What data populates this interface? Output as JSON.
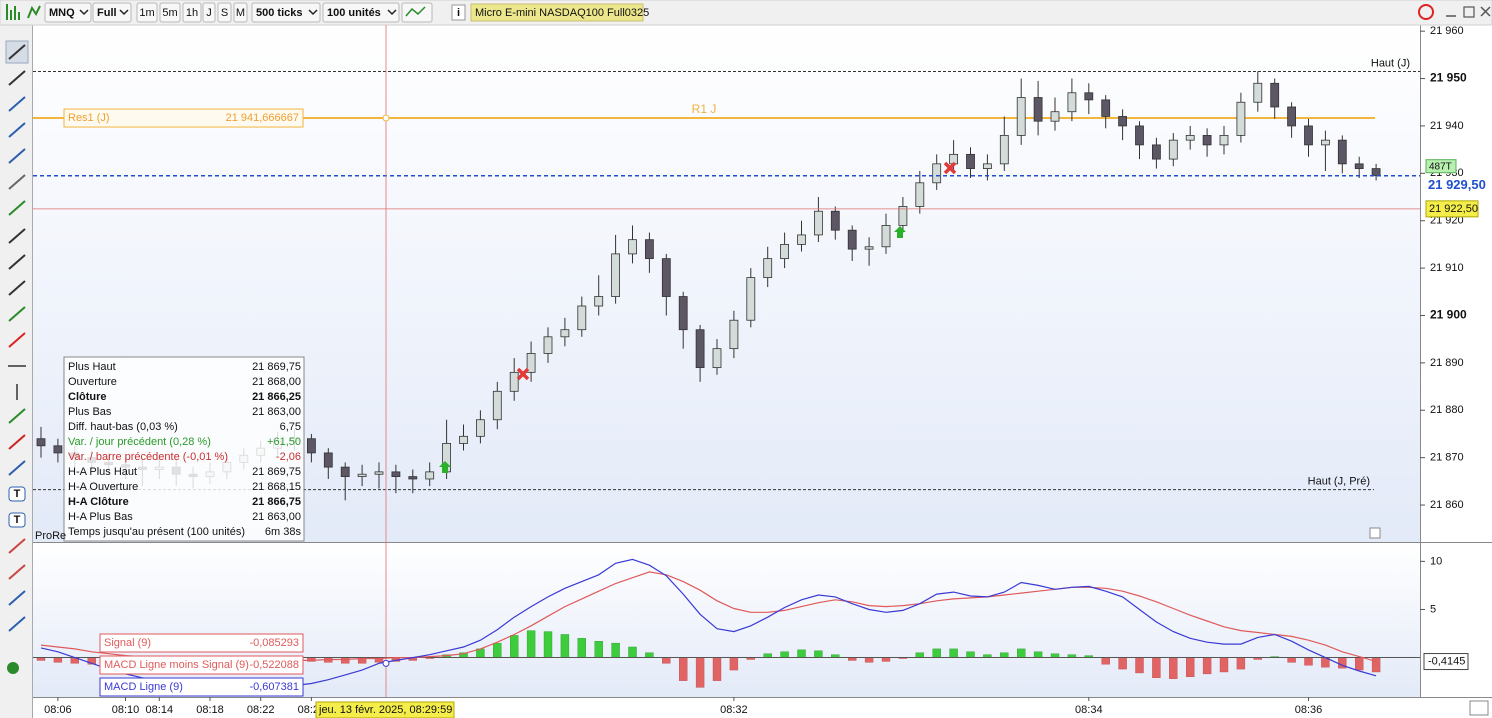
{
  "toolbar": {
    "symbol": "MNQ",
    "view": "Full",
    "periods": [
      "1m",
      "5m",
      "1h",
      "J",
      "S",
      "M"
    ],
    "ticks": "500 ticks",
    "units": "100 unités",
    "instrument": "Micro E-mini NASDAQ100 Full0325"
  },
  "chart_data": [
    {
      "type": "candlestick",
      "categories": [
        null,
        "08:06",
        null,
        null,
        null,
        "08:10",
        null,
        "08:14",
        null,
        null,
        "08:18",
        null,
        null,
        "08:22",
        null,
        null,
        "08:26",
        null,
        null,
        null,
        null,
        null,
        null,
        null,
        null,
        null,
        null,
        null,
        null,
        null,
        null,
        null,
        null,
        null,
        null,
        null,
        null,
        null,
        null,
        null,
        null,
        "08:32",
        null,
        null,
        null,
        null,
        null,
        null,
        null,
        null,
        null,
        null,
        null,
        null,
        null,
        null,
        null,
        null,
        null,
        null,
        null,
        null,
        "08:34",
        null,
        null,
        null,
        null,
        null,
        null,
        null,
        null,
        null,
        null,
        null,
        null,
        "08:36",
        null,
        null,
        null,
        null
      ],
      "open": [
        21874,
        21872.5,
        21871,
        21870,
        21869,
        21868.5,
        21868,
        21867.5,
        21868,
        21866.5,
        21866,
        21867,
        21869,
        21870.5,
        21872,
        21873.5,
        21874,
        21871,
        21868,
        21866,
        21866.5,
        21867,
        21866,
        21865.5,
        21867,
        21873,
        21874.5,
        21878,
        21884,
        21888,
        21892,
        21895.5,
        21897,
        21902,
        21904,
        21913,
        21916,
        21912,
        21904,
        21897,
        21889,
        21893,
        21899,
        21908,
        21912,
        21915,
        21917,
        21922,
        21918,
        21914,
        21914.5,
        21919,
        21923,
        21928,
        21932,
        21934,
        21931,
        21932,
        21938,
        21946,
        21941,
        21943,
        21947,
        21945.5,
        21942,
        21940,
        21936,
        21933,
        21937,
        21938,
        21936,
        21938,
        21945,
        21949,
        21944,
        21940,
        21936,
        21937,
        21932,
        21931
      ],
      "high": [
        21876.5,
        21874,
        21872.5,
        21871.5,
        21871,
        21870,
        21869.5,
        21870,
        21869.5,
        21868,
        21869,
        21870.5,
        21872,
        21873.5,
        21875.5,
        21876,
        21875,
        21872,
        21869,
        21868.5,
        21869,
        21868.5,
        21867.5,
        21869,
        21878,
        21877,
        21880,
        21886,
        21891,
        21894.5,
        21897.5,
        21899.5,
        21904,
        21908.5,
        21917,
        21919,
        21917.5,
        21913,
        21905,
        21898,
        21895,
        21901,
        21910,
        21914.5,
        21917.5,
        21920,
        21925,
        21923,
        21919,
        21916.5,
        21921.5,
        21925,
        21930.5,
        21934,
        21937,
        21935.5,
        21934,
        21942,
        21950,
        21949.5,
        21946,
        21950,
        21949,
        21946.5,
        21943.5,
        21941,
        21937.5,
        21938.5,
        21940,
        21939.5,
        21940,
        21947,
        21951.5,
        21950,
        21945,
        21941.5,
        21939,
        21938,
        21933.5,
        21932
      ],
      "low": [
        21870,
        21869,
        21868,
        21867.5,
        21866.5,
        21865.5,
        21864,
        21865.5,
        21864,
        21863.5,
        21864.5,
        21865.5,
        21867.5,
        21869,
        21870.5,
        21871.5,
        21869,
        21865.5,
        21861,
        21864,
        21863.5,
        21862.5,
        21862.5,
        21864,
        21865.5,
        21871.5,
        21873,
        21876,
        21882,
        21886,
        21890,
        21893.5,
        21895.5,
        21900,
        21902.5,
        21911,
        21909,
        21900,
        21893,
        21886,
        21887.5,
        21891,
        21897.5,
        21906,
        21910,
        21913.5,
        21915.5,
        21916,
        21911.5,
        21910.5,
        21913,
        21917.5,
        21921.5,
        21926.5,
        21930.5,
        21929,
        21928.5,
        21930.5,
        21936,
        21938,
        21939,
        21941,
        21942.5,
        21939.5,
        21937,
        21933,
        21931,
        21931.5,
        21935,
        21933.5,
        21934,
        21936.5,
        21943,
        21941.5,
        21937.5,
        21933.5,
        21930.5,
        21930,
        21929,
        21928.5
      ],
      "close": [
        21872.5,
        21871,
        21870,
        21869,
        21868.5,
        21868,
        21867.5,
        21868,
        21866.5,
        21866,
        21867,
        21869,
        21870.5,
        21872,
        21873.5,
        21874,
        21871,
        21868,
        21866,
        21866.5,
        21867,
        21866,
        21865.5,
        21867,
        21873,
        21874.5,
        21878,
        21884,
        21888,
        21892,
        21895.5,
        21897,
        21902,
        21904,
        21913,
        21916,
        21912,
        21904,
        21897,
        21889,
        21893,
        21899,
        21908,
        21912,
        21915,
        21917,
        21922,
        21918,
        21914,
        21914.5,
        21919,
        21923,
        21928,
        21932,
        21934,
        21931,
        21932,
        21938,
        21946,
        21941,
        21943,
        21947,
        21945.5,
        21942,
        21940,
        21936,
        21933,
        21937,
        21938,
        21936,
        21938,
        21945,
        21949,
        21944,
        21940,
        21936,
        21937,
        21932,
        21931,
        21929.5
      ],
      "up_color": "#d3dcd9",
      "down_color": "#5c5665",
      "ylim": [
        21852.2,
        21961.3
      ],
      "yticks": [
        {
          "value": 21960,
          "label": "21 960"
        },
        {
          "value": 21950,
          "label": "21 950"
        },
        {
          "value": 21940,
          "label": "21 940"
        },
        {
          "value": 21930,
          "label": "21 930"
        },
        {
          "value": 21920,
          "label": "21 920"
        },
        {
          "value": 21910,
          "label": "21 910"
        },
        {
          "value": 21900,
          "label": "21 900"
        },
        {
          "value": 21890,
          "label": "21 890"
        },
        {
          "value": 21880,
          "label": "21 880"
        },
        {
          "value": 21870,
          "label": "21 870"
        },
        {
          "value": 21860,
          "label": "21 860"
        }
      ],
      "levels": [
        {
          "label": "Haut (J)",
          "value": 21951.5
        },
        {
          "label": "Haut (J, Pré)",
          "value": 21863.25
        }
      ],
      "pivot": {
        "name": "R1 J",
        "label": "Res1 (J)",
        "value": 21941.666667,
        "value_label": "21 941,666667"
      },
      "last_price": {
        "value": 21929.5,
        "label": "21 929,50",
        "volume_tag": "487T"
      },
      "crosshair": {
        "value": 21922.5,
        "label": "21 922,50",
        "time": "jeu. 13 févr. 2025, 08:29:59"
      },
      "watermark": "ProRe"
    },
    {
      "type": "macd",
      "series": [
        {
          "name": "Signal (9)",
          "color": "#e05a5a",
          "current": {
            "value": -0.085293,
            "label": "-0,085293"
          },
          "values": [
            1.3,
            1.1,
            0.9,
            0.6,
            0.4,
            0.2,
            0.1,
            0.0,
            -0.1,
            -0.2,
            -0.2,
            -0.3,
            -0.3,
            -0.3,
            -0.3,
            -0.3,
            -0.3,
            -0.2,
            -0.2,
            -0.1,
            -0.1,
            0.0,
            0.0,
            0.1,
            0.2,
            0.4,
            0.9,
            1.6,
            2.4,
            3.3,
            4.3,
            5.3,
            6.1,
            6.9,
            7.7,
            8.3,
            8.9,
            8.6,
            7.9,
            7.0,
            5.9,
            5.1,
            4.7,
            4.7,
            4.9,
            5.3,
            5.7,
            6.0,
            5.8,
            5.4,
            5.3,
            5.4,
            5.6,
            5.9,
            6.1,
            6.2,
            6.3,
            6.5,
            6.7,
            6.9,
            7.1,
            7.3,
            7.3,
            7.2,
            6.9,
            6.4,
            5.8,
            5.1,
            4.4,
            3.8,
            3.2,
            2.8,
            2.6,
            2.4,
            2.2,
            1.8,
            1.3,
            0.6,
            0.1,
            -0.4
          ]
        },
        {
          "name": "MACD Ligne moins Signal (9)",
          "up_color": "#3ccc3c",
          "down_color": "#e06464",
          "current": {
            "value": -0.522088,
            "label": "-0,522088"
          },
          "values": [
            -0.3,
            -0.5,
            -0.6,
            -0.7,
            -0.6,
            -0.6,
            -0.5,
            -0.6,
            -0.5,
            -0.6,
            -0.6,
            -0.5,
            -0.5,
            -0.4,
            -0.4,
            -0.3,
            -0.4,
            -0.5,
            -0.6,
            -0.6,
            -0.5,
            -0.4,
            -0.3,
            -0.1,
            0.3,
            0.5,
            0.9,
            1.5,
            2.3,
            2.8,
            2.7,
            2.4,
            2.0,
            1.7,
            1.5,
            1.1,
            0.5,
            -0.6,
            -2.4,
            -3.1,
            -2.4,
            -1.3,
            -0.2,
            0.4,
            0.6,
            0.8,
            0.7,
            0.3,
            -0.3,
            -0.5,
            -0.4,
            -0.1,
            0.5,
            0.9,
            0.9,
            0.6,
            0.3,
            0.5,
            0.9,
            0.6,
            0.4,
            0.3,
            0.2,
            -0.7,
            -1.2,
            -1.6,
            -2.1,
            -2.2,
            -2.0,
            -1.7,
            -1.5,
            -1.2,
            -0.2,
            0.1,
            -0.5,
            -0.8,
            -1.0,
            -1.1,
            -1.3,
            -1.5
          ]
        },
        {
          "name": "MACD Ligne (9)",
          "color": "#3a3ad4",
          "current": {
            "value": -0.607381,
            "label": "-0,607381"
          },
          "values": [
            1.0,
            0.6,
            0.0,
            -0.6,
            -1.2,
            -1.7,
            -2.1,
            -2.4,
            -2.6,
            -2.8,
            -2.9,
            -3.0,
            -3.0,
            -3.0,
            -2.9,
            -2.9,
            -2.7,
            -2.3,
            -1.8,
            -1.3,
            -0.6,
            -0.3,
            0.0,
            0.3,
            0.7,
            1.1,
            1.8,
            2.9,
            4.2,
            5.3,
            6.3,
            7.2,
            7.9,
            8.6,
            9.8,
            10.2,
            9.6,
            8.5,
            6.6,
            4.5,
            3.0,
            2.7,
            3.3,
            4.2,
            5.2,
            6.0,
            6.5,
            6.3,
            5.6,
            5.0,
            4.7,
            4.9,
            5.6,
            6.6,
            6.8,
            6.4,
            6.3,
            6.8,
            7.8,
            7.5,
            7.1,
            7.3,
            7.4,
            6.9,
            6.3,
            5.0,
            3.7,
            2.7,
            2.0,
            1.6,
            1.4,
            1.4,
            2.1,
            2.4,
            1.7,
            0.8,
            0.0,
            -0.8,
            -1.4,
            -1.9
          ]
        }
      ],
      "last_value": {
        "value": -0.4145,
        "label": "-0,4145"
      },
      "ylim": [
        -4.1,
        11.7
      ],
      "yticks": [
        5,
        10
      ]
    }
  ],
  "info_box": {
    "rows": [
      [
        "Plus Haut",
        "21 869,75"
      ],
      [
        "Ouverture",
        "21 868,00"
      ],
      [
        "Clôture",
        "21 866,25"
      ],
      [
        "Plus Bas",
        "21 863,00"
      ],
      [
        "Diff. haut-bas (0,03 %)",
        "6,75"
      ],
      [
        "Var. / jour précédent (0,28 %)",
        "+61,50"
      ],
      [
        "Var. / barre précédente (-0,01 %)",
        "-2,06"
      ],
      [
        "H-A Plus Haut",
        "21 869,75"
      ],
      [
        "H-A Ouverture",
        "21 868,15"
      ],
      [
        "H-A Clôture",
        "21 866,75"
      ],
      [
        "H-A Plus Bas",
        "21 863,00"
      ],
      [
        "Temps jusqu'au présent (100 unités)",
        "6m 38s"
      ]
    ]
  }
}
